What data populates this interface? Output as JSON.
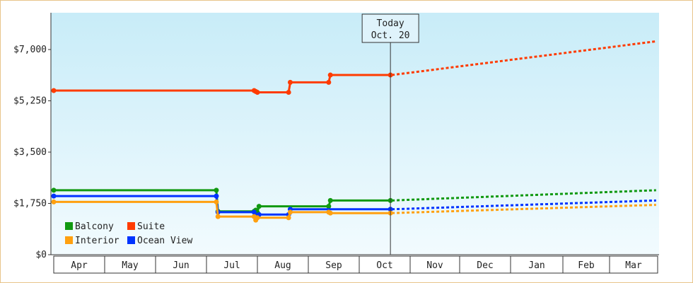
{
  "chart_data": {
    "type": "line",
    "title": "",
    "xlabel": "",
    "ylabel": "",
    "ylim": [
      0,
      7000
    ],
    "y_ticks": [
      "$0",
      "$1,750",
      "$3,500",
      "$5,250",
      "$7,000"
    ],
    "y_tick_values": [
      0,
      1750,
      3500,
      5250,
      7000
    ],
    "months": [
      "Apr",
      "May",
      "Jun",
      "Jul",
      "Aug",
      "Sep",
      "Oct",
      "Nov",
      "Dec",
      "Jan",
      "Feb",
      "Mar"
    ],
    "today_marker": {
      "line1": "Today",
      "line2": "Oct. 20",
      "x": "Oct 20"
    },
    "grid": false,
    "legend_position": "bottom-left",
    "series": [
      {
        "name": "Suite",
        "color": "#ff3b00",
        "actual": [
          [
            "Apr 1",
            5600
          ],
          [
            "Jul 30",
            5600
          ],
          [
            "Jul 31",
            5570
          ],
          [
            "Aug 1",
            5540
          ],
          [
            "Aug 20",
            5540
          ],
          [
            "Aug 21",
            5880
          ],
          [
            "Sep 13",
            5880
          ],
          [
            "Sep 14",
            6130
          ],
          [
            "Oct 20",
            6130
          ]
        ],
        "projected": [
          [
            "Oct 20",
            6130
          ],
          [
            "Mar 31",
            7280
          ]
        ]
      },
      {
        "name": "Balcony",
        "color": "#119911",
        "actual": [
          [
            "Apr 1",
            2200
          ],
          [
            "Jul 7",
            2200
          ],
          [
            "Jul 8",
            1480
          ],
          [
            "Jul 30",
            1480
          ],
          [
            "Jul 31",
            1520
          ],
          [
            "Aug 1",
            1440
          ],
          [
            "Aug 2",
            1650
          ],
          [
            "Aug 20",
            1650
          ],
          [
            "Aug 21",
            1650
          ],
          [
            "Sep 13",
            1650
          ],
          [
            "Sep 14",
            1850
          ],
          [
            "Oct 20",
            1850
          ]
        ],
        "projected": [
          [
            "Oct 20",
            1850
          ],
          [
            "Mar 31",
            2200
          ]
        ]
      },
      {
        "name": "Ocean View",
        "color": "#0033ff",
        "actual": [
          [
            "Apr 1",
            2000
          ],
          [
            "Jul 7",
            2000
          ],
          [
            "Jul 8",
            1450
          ],
          [
            "Jul 30",
            1450
          ],
          [
            "Jul 31",
            1330
          ],
          [
            "Aug 1",
            1330
          ],
          [
            "Aug 2",
            1370
          ],
          [
            "Aug 20",
            1370
          ],
          [
            "Aug 21",
            1550
          ],
          [
            "Sep 13",
            1550
          ],
          [
            "Sep 14",
            1550
          ],
          [
            "Oct 20",
            1550
          ]
        ],
        "projected": [
          [
            "Oct 20",
            1550
          ],
          [
            "Mar 31",
            1850
          ]
        ]
      },
      {
        "name": "Interior",
        "color": "#ffa010",
        "actual": [
          [
            "Apr 1",
            1800
          ],
          [
            "Jul 7",
            1800
          ],
          [
            "Jul 8",
            1300
          ],
          [
            "Jul 30",
            1300
          ],
          [
            "Jul 31",
            1180
          ],
          [
            "Aug 1",
            1260
          ],
          [
            "Aug 20",
            1260
          ],
          [
            "Aug 21",
            1450
          ],
          [
            "Sep 13",
            1450
          ],
          [
            "Sep 14",
            1420
          ],
          [
            "Oct 20",
            1420
          ]
        ],
        "projected": [
          [
            "Oct 20",
            1420
          ],
          [
            "Mar 31",
            1700
          ]
        ]
      }
    ],
    "legend": [
      {
        "name": "Balcony",
        "color": "#119911"
      },
      {
        "name": "Suite",
        "color": "#ff3b00"
      },
      {
        "name": "Interior",
        "color": "#ffa010"
      },
      {
        "name": "Ocean View",
        "color": "#0033ff"
      }
    ]
  }
}
